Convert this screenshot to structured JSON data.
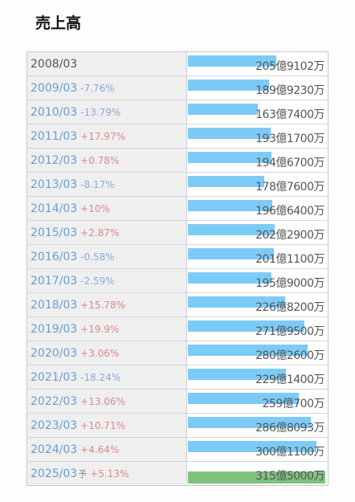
{
  "title": "売上高",
  "chart_data": {
    "type": "bar",
    "title": "売上高",
    "orientation": "horizontal",
    "unit": "円",
    "colors": {
      "actual": "#7ccbf7",
      "forecast": "#7ec27e"
    },
    "rows": [
      {
        "year": "2008/03",
        "change": "",
        "value": 20591020000,
        "value_text": "205億9102万",
        "forecast": false
      },
      {
        "year": "2009/03",
        "change": "-7.76%",
        "value": 18992300000,
        "value_text": "189億9230万",
        "forecast": false
      },
      {
        "year": "2010/03",
        "change": "-13.79%",
        "value": 16374000000,
        "value_text": "163億7400万",
        "forecast": false
      },
      {
        "year": "2011/03",
        "change": "+17.97%",
        "value": 19317000000,
        "value_text": "193億1700万",
        "forecast": false
      },
      {
        "year": "2012/03",
        "change": "+0.78%",
        "value": 19467000000,
        "value_text": "194億6700万",
        "forecast": false
      },
      {
        "year": "2013/03",
        "change": "-8.17%",
        "value": 17876000000,
        "value_text": "178億7600万",
        "forecast": false
      },
      {
        "year": "2014/03",
        "change": "+10%",
        "value": 19664000000,
        "value_text": "196億6400万",
        "forecast": false
      },
      {
        "year": "2015/03",
        "change": "+2.87%",
        "value": 20229000000,
        "value_text": "202億2900万",
        "forecast": false
      },
      {
        "year": "2016/03",
        "change": "-0.58%",
        "value": 20111000000,
        "value_text": "201億1100万",
        "forecast": false
      },
      {
        "year": "2017/03",
        "change": "-2.59%",
        "value": 19590000000,
        "value_text": "195億9000万",
        "forecast": false
      },
      {
        "year": "2018/03",
        "change": "+15.78%",
        "value": 22682000000,
        "value_text": "226億8200万",
        "forecast": false
      },
      {
        "year": "2019/03",
        "change": "+19.9%",
        "value": 27195000000,
        "value_text": "271億9500万",
        "forecast": false
      },
      {
        "year": "2020/03",
        "change": "+3.06%",
        "value": 28026000000,
        "value_text": "280億2600万",
        "forecast": false
      },
      {
        "year": "2021/03",
        "change": "-18.24%",
        "value": 22914000000,
        "value_text": "229億1400万",
        "forecast": false
      },
      {
        "year": "2022/03",
        "change": "+13.06%",
        "value": 25907000000,
        "value_text": "259億700万",
        "forecast": false
      },
      {
        "year": "2023/03",
        "change": "+10.71%",
        "value": 28680930000,
        "value_text": "286億8093万",
        "forecast": false
      },
      {
        "year": "2024/03",
        "change": "+4.64%",
        "value": 30011000000,
        "value_text": "300億1100万",
        "forecast": false
      },
      {
        "year": "2025/03",
        "year_suffix": "予",
        "change": "+5.13%",
        "value": 31550000000,
        "value_text": "315億5000万",
        "forecast": true
      }
    ]
  }
}
